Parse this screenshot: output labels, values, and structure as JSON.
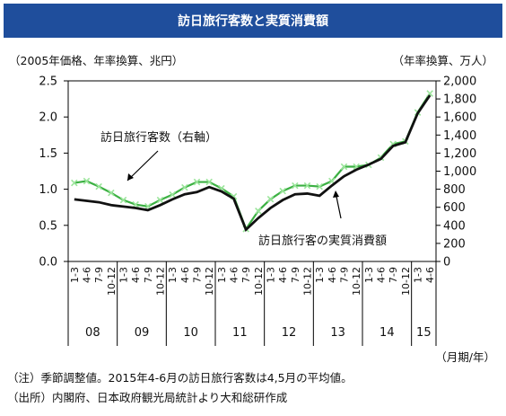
{
  "title": "訪日旅行客数と実質消費額",
  "notes": {
    "line1": "（注）季節調整値。2015年4-6月の訪日旅行客数は4,5月の平均値。",
    "line2": "（出所）内閣府、日本政府観光局統計より大和総研作成"
  },
  "colors": {
    "title_bg": "#1f4e9c",
    "consumption": "#111111",
    "visitors": "#3cb043",
    "visitors_marker": "#9be59b"
  },
  "chart_data": {
    "type": "line",
    "left_axis_unit": "（2005年価格、年率換算、兆円）",
    "right_axis_unit": "（年率換算、万人）",
    "x_axis_unit": "（月期/年）",
    "left_ylim": [
      0,
      2.5
    ],
    "left_ticks": [
      "0.0",
      "0.5",
      "1.0",
      "1.5",
      "2.0",
      "2.5"
    ],
    "right_ylim": [
      0,
      2000
    ],
    "right_ticks": [
      "0",
      "200",
      "400",
      "600",
      "800",
      "1,000",
      "1,200",
      "1,400",
      "1,600",
      "1,800",
      "2,000"
    ],
    "quarters": [
      "1-3",
      "4-6",
      "7-9",
      "10-12",
      "1-3",
      "4-6",
      "7-9",
      "10-12",
      "1-3",
      "4-6",
      "7-9",
      "10-12",
      "1-3",
      "4-6",
      "7-9",
      "10-12",
      "1-3",
      "4-6",
      "7-9",
      "10-12",
      "1-3",
      "4-6",
      "7-9",
      "10-12",
      "1-3",
      "4-6",
      "7-9",
      "10-12",
      "1-3",
      "4-6"
    ],
    "years": [
      {
        "label": "08",
        "start": 0,
        "count": 4
      },
      {
        "label": "09",
        "start": 4,
        "count": 4
      },
      {
        "label": "10",
        "start": 8,
        "count": 4
      },
      {
        "label": "11",
        "start": 12,
        "count": 4
      },
      {
        "label": "12",
        "start": 16,
        "count": 4
      },
      {
        "label": "13",
        "start": 20,
        "count": 4
      },
      {
        "label": "14",
        "start": 24,
        "count": 4
      },
      {
        "label": "15",
        "start": 28,
        "count": 2
      }
    ],
    "series": [
      {
        "name": "訪日旅行客の実質消費額",
        "axis": "left",
        "values": [
          0.86,
          0.84,
          0.82,
          0.78,
          0.76,
          0.74,
          0.71,
          0.78,
          0.86,
          0.93,
          0.96,
          1.03,
          0.97,
          0.87,
          0.44,
          0.6,
          0.74,
          0.85,
          0.93,
          0.94,
          0.91,
          1.05,
          1.18,
          1.27,
          1.34,
          1.42,
          1.6,
          1.65,
          2.05,
          2.3
        ]
      },
      {
        "name": "訪日旅行客数（右軸）",
        "axis": "right",
        "values": [
          870,
          890,
          830,
          760,
          680,
          630,
          610,
          680,
          740,
          820,
          880,
          880,
          810,
          720,
          360,
          560,
          690,
          780,
          840,
          840,
          830,
          890,
          1050,
          1050,
          1070,
          1150,
          1300,
          1330,
          1650,
          1860
        ]
      }
    ],
    "annotations": [
      {
        "text": "訪日旅行客数（右軸）",
        "series": 1
      },
      {
        "text": "訪日旅行客の実質消費額",
        "series": 0
      }
    ]
  }
}
